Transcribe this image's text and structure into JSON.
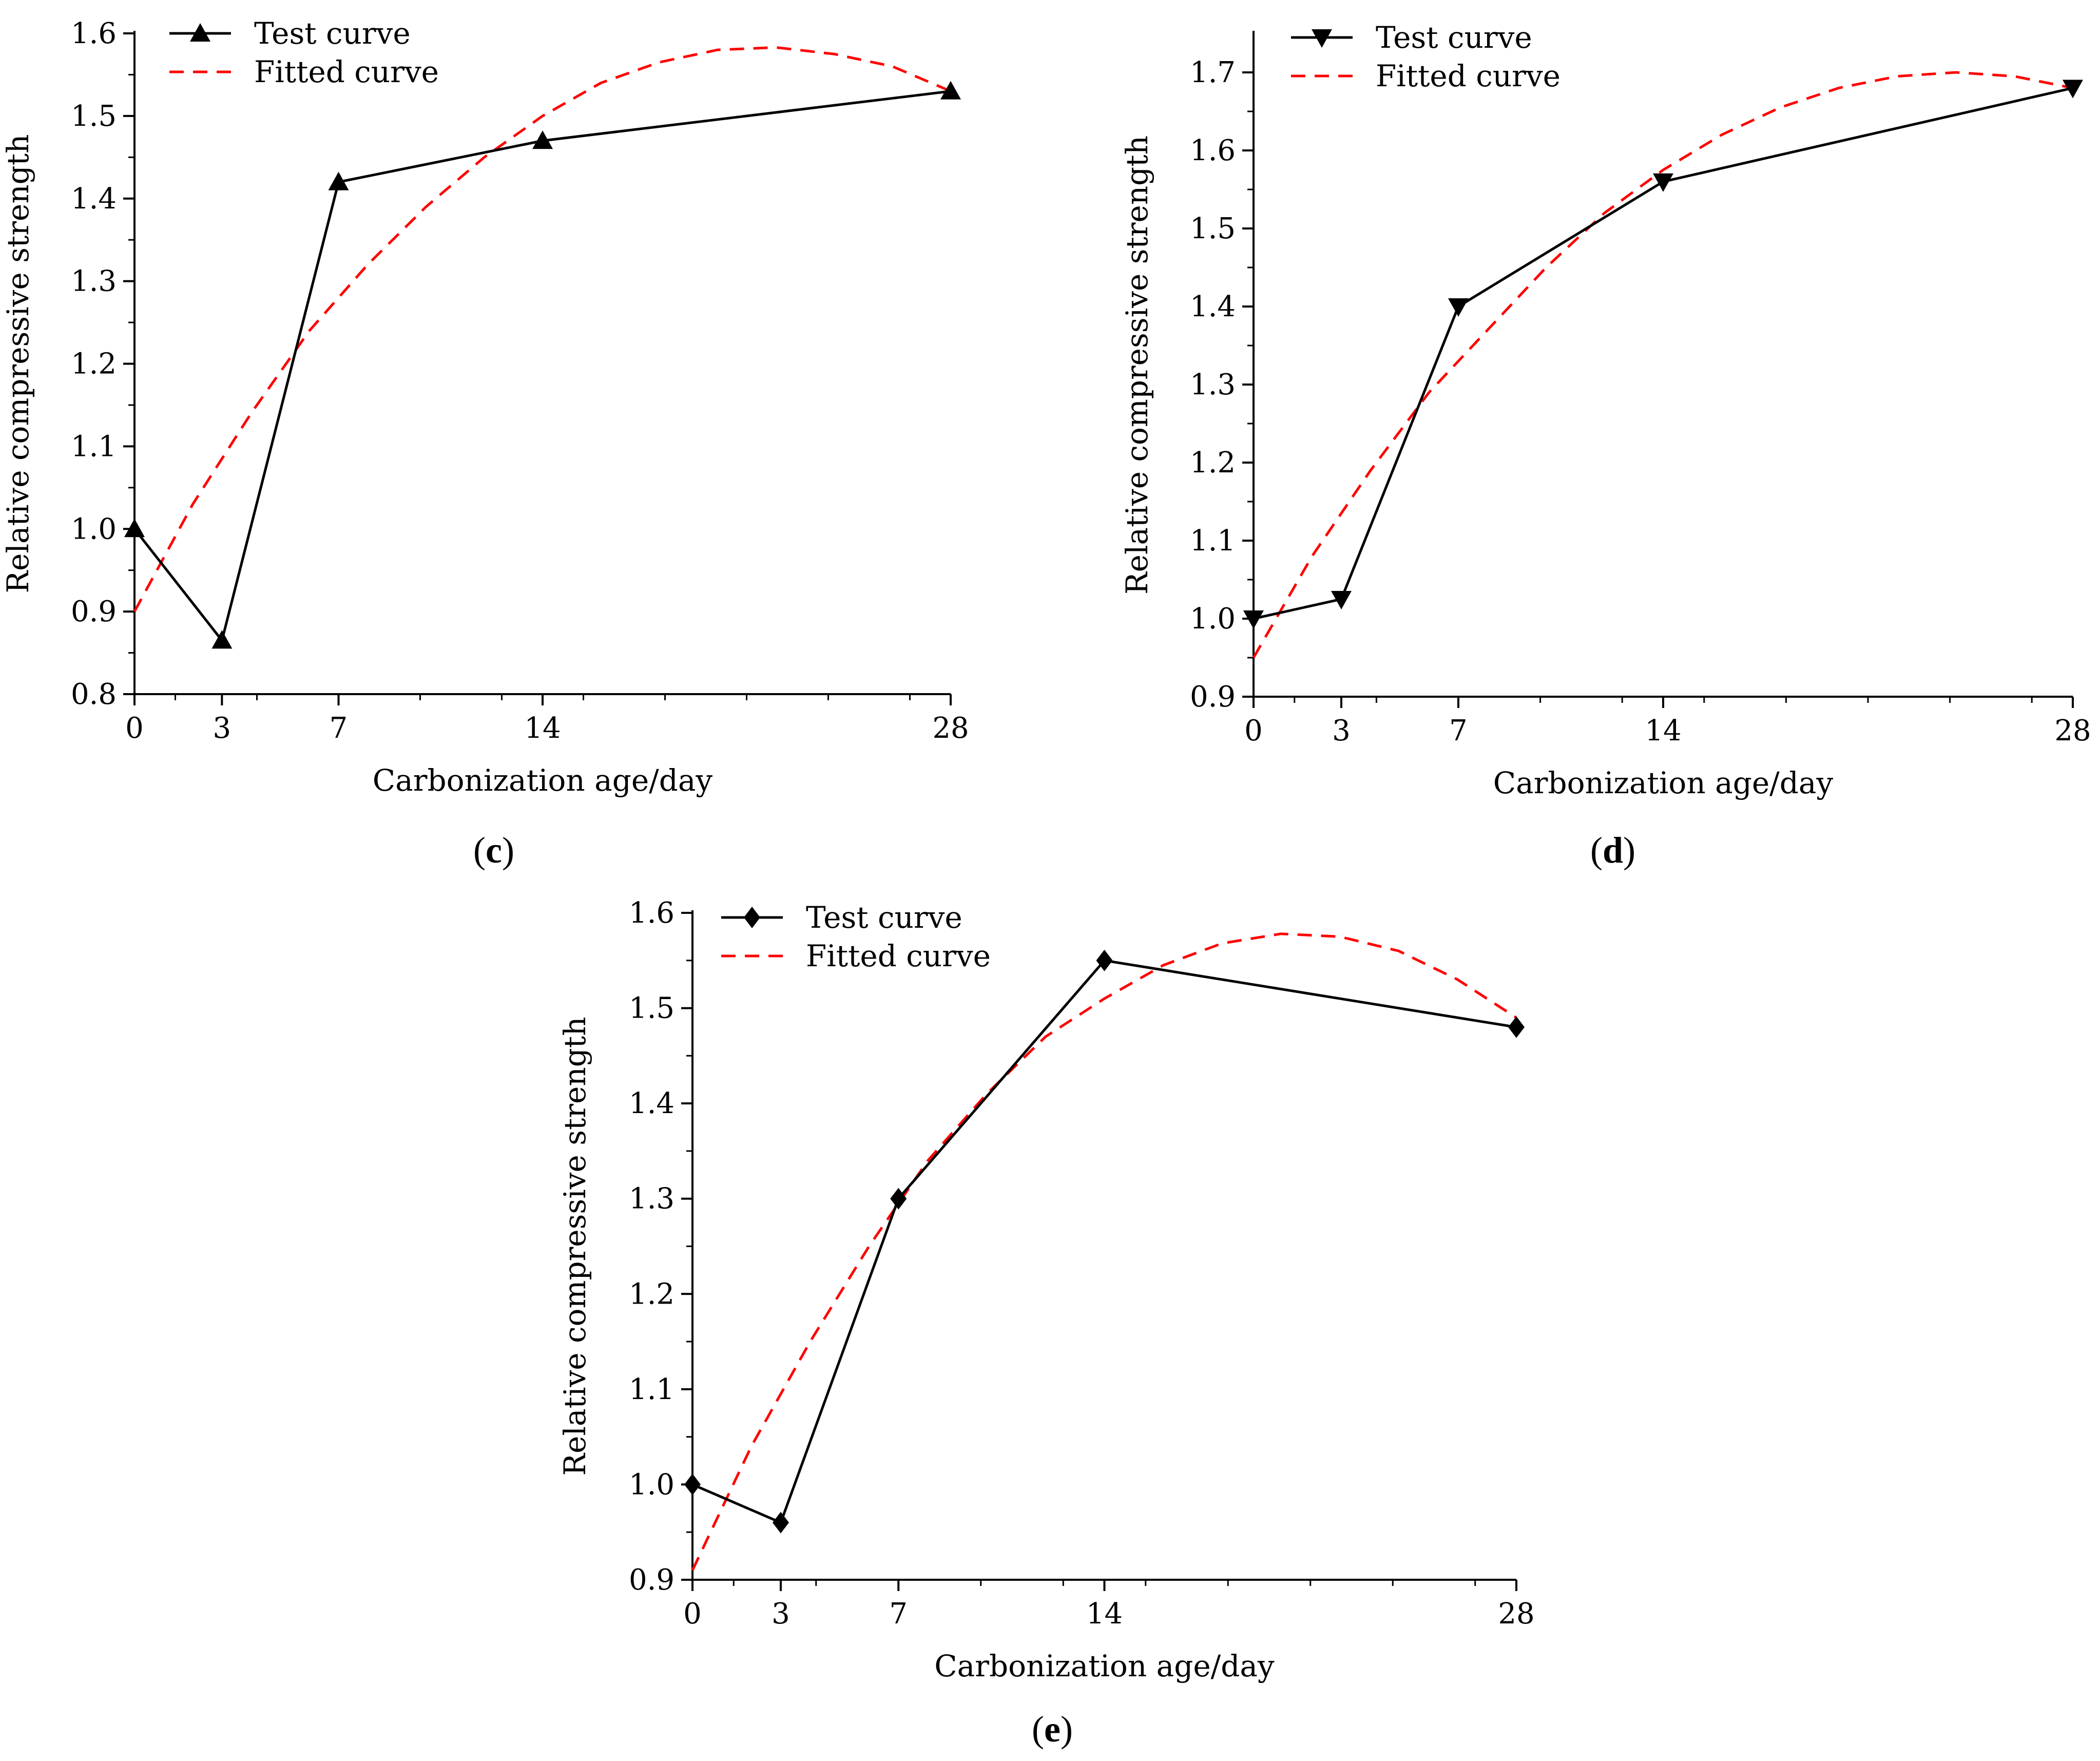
{
  "chart_data": [
    {
      "type": "line",
      "caption_letter": "c",
      "xlabel": "Carbonization age/day",
      "ylabel": "Relative compressive strength",
      "xlim": [
        0,
        28
      ],
      "ylim": [
        0.8,
        1.6
      ],
      "xticks": [
        0,
        3,
        7,
        14,
        28
      ],
      "xtick_labels": [
        "0",
        "3",
        "7",
        "14",
        "28"
      ],
      "yticks": [
        0.8,
        0.9,
        1.0,
        1.1,
        1.2,
        1.3,
        1.4,
        1.5,
        1.6
      ],
      "ytick_labels": [
        "0.8",
        "0.9",
        "1.0",
        "1.1",
        "1.2",
        "1.3",
        "1.4",
        "1.5",
        "1.6"
      ],
      "legend": [
        "Test curve",
        "Fitted curve"
      ],
      "marker": "triangle-up",
      "series": [
        {
          "name": "Test curve",
          "x": [
            0,
            3,
            7,
            14,
            28
          ],
          "values": [
            1.0,
            0.865,
            1.42,
            1.47,
            1.53
          ]
        },
        {
          "name": "Fitted curve",
          "x": [
            0,
            2,
            4,
            6,
            8,
            10,
            12,
            14,
            16,
            18,
            20,
            22,
            24,
            26,
            28
          ],
          "values": [
            0.9,
            1.03,
            1.14,
            1.24,
            1.32,
            1.39,
            1.45,
            1.5,
            1.54,
            1.565,
            1.58,
            1.583,
            1.575,
            1.56,
            1.53
          ]
        }
      ]
    },
    {
      "type": "line",
      "caption_letter": "d",
      "xlabel": "Carbonization age/day",
      "ylabel": "Relative compressive strength",
      "xlim": [
        0,
        28
      ],
      "ylim": [
        0.9,
        1.75
      ],
      "xticks": [
        0,
        3,
        7,
        14,
        28
      ],
      "xtick_labels": [
        "0",
        "3",
        "7",
        "14",
        "28"
      ],
      "yticks": [
        0.9,
        1.0,
        1.1,
        1.2,
        1.3,
        1.4,
        1.5,
        1.6,
        1.7
      ],
      "ytick_labels": [
        "0.9",
        "1.0",
        "1.1",
        "1.2",
        "1.3",
        "1.4",
        "1.5",
        "1.6",
        "1.7"
      ],
      "legend": [
        "Test curve",
        "Fitted curve"
      ],
      "marker": "triangle-down",
      "series": [
        {
          "name": "Test curve",
          "x": [
            0,
            3,
            7,
            14,
            28
          ],
          "values": [
            1.0,
            1.025,
            1.4,
            1.56,
            1.68
          ]
        },
        {
          "name": "Fitted curve",
          "x": [
            0,
            2,
            4,
            6,
            8,
            10,
            12,
            14,
            16,
            18,
            20,
            22,
            24,
            26,
            28
          ],
          "values": [
            0.95,
            1.08,
            1.19,
            1.29,
            1.37,
            1.45,
            1.52,
            1.575,
            1.62,
            1.655,
            1.68,
            1.695,
            1.7,
            1.695,
            1.68
          ]
        }
      ]
    },
    {
      "type": "line",
      "caption_letter": "e",
      "xlabel": "Carbonization age/day",
      "ylabel": "Relative compressive strength",
      "xlim": [
        0,
        28
      ],
      "ylim": [
        0.9,
        1.6
      ],
      "xticks": [
        0,
        3,
        7,
        14,
        28
      ],
      "xtick_labels": [
        "0",
        "3",
        "7",
        "14",
        "28"
      ],
      "yticks": [
        0.9,
        1.0,
        1.1,
        1.2,
        1.3,
        1.4,
        1.5,
        1.6
      ],
      "ytick_labels": [
        "0.9",
        "1.0",
        "1.1",
        "1.2",
        "1.3",
        "1.4",
        "1.5",
        "1.6"
      ],
      "legend": [
        "Test curve",
        "Fitted curve"
      ],
      "marker": "diamond",
      "series": [
        {
          "name": "Test curve",
          "x": [
            0,
            3,
            7,
            14,
            28
          ],
          "values": [
            1.0,
            0.96,
            1.3,
            1.55,
            1.48
          ]
        },
        {
          "name": "Fitted curve",
          "x": [
            0,
            2,
            4,
            6,
            8,
            10,
            12,
            14,
            16,
            18,
            20,
            22,
            24,
            26,
            28
          ],
          "values": [
            0.91,
            1.04,
            1.15,
            1.25,
            1.34,
            1.41,
            1.47,
            1.51,
            1.545,
            1.568,
            1.578,
            1.575,
            1.56,
            1.53,
            1.49
          ]
        }
      ]
    }
  ],
  "colors": {
    "test": "#000000",
    "fitted": "#ff0000"
  }
}
